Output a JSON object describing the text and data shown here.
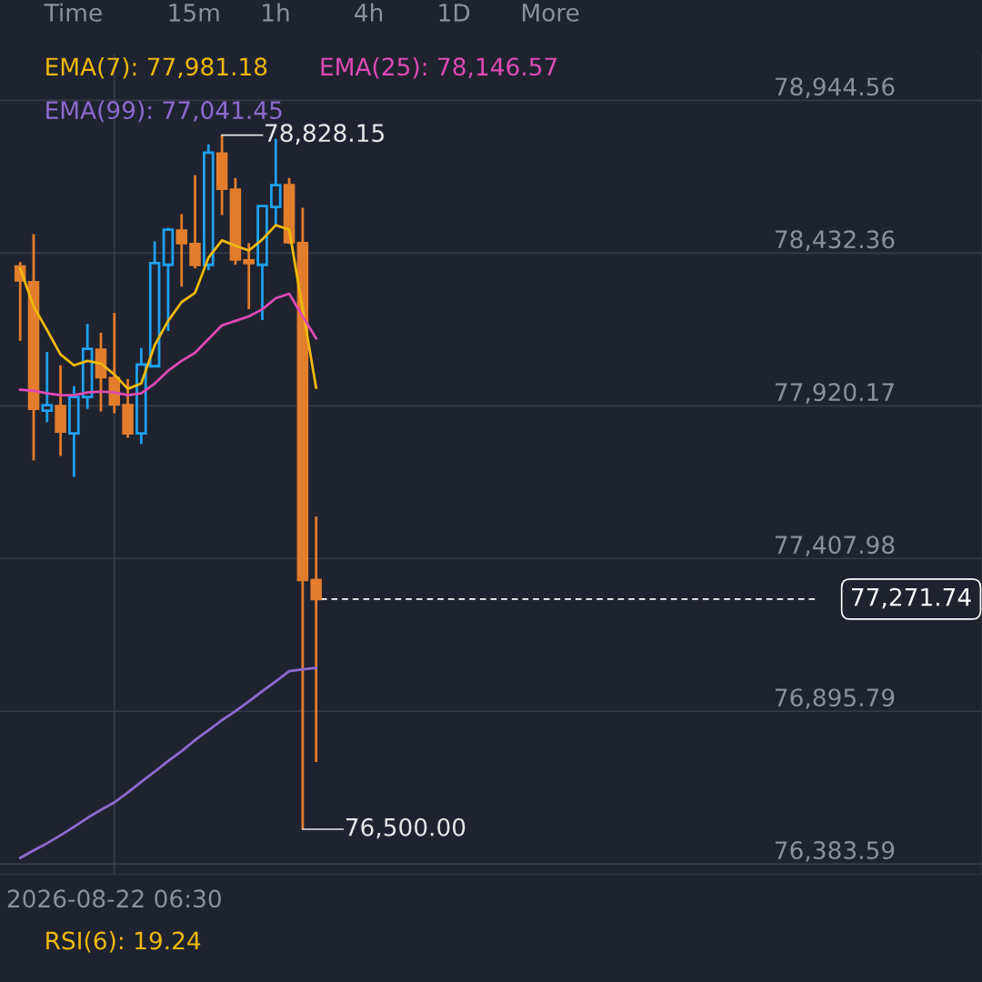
{
  "chart_data": {
    "type": "candlestick",
    "categories": [
      null,
      null,
      null,
      null,
      null,
      null,
      null,
      null,
      "2026-08-22 06:30",
      null,
      null,
      null,
      null,
      null,
      null,
      null,
      null,
      null,
      null,
      null,
      null,
      null,
      null,
      null,
      null,
      null,
      null,
      null,
      null,
      null,
      null,
      null,
      null,
      null,
      null,
      null,
      null,
      null,
      null,
      null,
      null,
      null,
      null,
      null,
      null,
      null,
      null,
      null,
      null,
      null,
      null,
      null,
      null,
      null,
      null,
      null,
      null,
      null,
      null,
      null,
      null,
      null,
      null,
      null,
      null,
      null,
      null,
      null,
      null,
      null,
      null,
      null,
      null
    ],
    "ohlc": [
      null,
      [
        78387,
        78402,
        78138,
        78341
      ],
      [
        78335,
        78496,
        77737,
        77910
      ],
      [
        77904,
        78101,
        77865,
        77922
      ],
      [
        77919,
        78056,
        77752,
        77834
      ],
      [
        77828,
        77986,
        77682,
        77950
      ],
      [
        77950,
        78195,
        77910,
        78111
      ],
      [
        78108,
        78165,
        77901,
        78016
      ],
      [
        78013,
        78232,
        77895,
        77925
      ],
      [
        77922,
        78010,
        77813,
        77828
      ],
      [
        77828,
        78114,
        77792,
        78059
      ],
      [
        78053,
        78472,
        78050,
        78399
      ],
      [
        78393,
        78517,
        78171,
        78511
      ],
      [
        78508,
        78563,
        78320,
        78466
      ],
      [
        78463,
        78693,
        78381,
        78393
      ],
      [
        78393,
        78797,
        78375,
        78769
      ],
      [
        78766,
        78828.15,
        78560,
        78648
      ],
      [
        78645,
        78684,
        78393,
        78411
      ],
      [
        78408,
        78466,
        78244,
        78399
      ],
      [
        78393,
        78590,
        78208,
        78590
      ],
      [
        78587,
        78815,
        78527,
        78660
      ],
      [
        78660,
        78684,
        78463,
        78469
      ],
      [
        78466,
        78584,
        76500,
        77336
      ],
      [
        77336,
        77549,
        76726,
        77271.74
      ],
      null,
      null,
      null,
      null,
      null,
      null,
      null,
      null,
      null,
      null,
      null,
      null,
      null,
      null,
      null,
      null,
      null,
      null,
      null,
      null,
      null,
      null,
      null,
      null,
      null,
      null,
      null,
      null,
      null,
      null,
      null,
      null,
      null,
      null,
      null,
      null,
      null,
      null,
      null,
      null,
      null,
      null,
      null,
      null,
      null,
      null,
      null,
      null,
      null
    ],
    "colors": [
      null,
      "#e27d2c",
      "#e27d2c",
      "#1ea1f0",
      "#e27d2c",
      "#1ea1f0",
      "#1ea1f0",
      "#e27d2c",
      "#e27d2c",
      "#e27d2c",
      "#1ea1f0",
      "#1ea1f0",
      "#1ea1f0",
      "#e27d2c",
      "#e27d2c",
      "#1ea1f0",
      "#e27d2c",
      "#e27d2c",
      "#e27d2c",
      "#1ea1f0",
      "#1ea1f0",
      "#e27d2c",
      "#e27d2c",
      "#e27d2c",
      null,
      null,
      null,
      null,
      null,
      null,
      null,
      null,
      null,
      null,
      null,
      null,
      null,
      null,
      null,
      null,
      null,
      null,
      null,
      null,
      null,
      null,
      null,
      null,
      null,
      null,
      null,
      null,
      null,
      null,
      null,
      null,
      null,
      null,
      null,
      null,
      null,
      null,
      null,
      null,
      null,
      null,
      null,
      null,
      null,
      null,
      null,
      null,
      null
    ],
    "series": [
      {
        "name": "EMA(7): 77,981.18",
        "type": "line",
        "color": "#f0b90b",
        "values": [
          null,
          78381,
          78253,
          78174,
          78092,
          78056,
          78071,
          78062,
          78025,
          77977,
          77995,
          78123,
          78205,
          78268,
          78299,
          78417,
          78475,
          78457,
          78441,
          78478,
          78526,
          78511,
          78244,
          77981.18,
          null,
          null,
          null,
          null,
          null,
          null,
          null,
          null,
          null,
          null,
          null,
          null,
          null,
          null,
          null,
          null,
          null,
          null,
          null,
          null,
          null,
          null,
          null,
          null,
          null,
          null,
          null,
          null,
          null,
          null,
          null,
          null,
          null,
          null,
          null,
          null,
          null,
          null,
          null,
          null,
          null,
          null,
          null,
          null,
          null,
          null,
          null,
          null,
          null
        ]
      },
      {
        "name": "EMA(25): 78,146.57",
        "type": "line",
        "color": "#e04bb4",
        "values": [
          null,
          77974,
          77971,
          77962,
          77956,
          77956,
          77965,
          77968,
          77965,
          77956,
          77962,
          77995,
          78038,
          78071,
          78098,
          78144,
          78190,
          78205,
          78220,
          78244,
          78281,
          78296,
          78220,
          78146.57,
          null,
          null,
          null,
          null,
          null,
          null,
          null,
          null,
          null,
          null,
          null,
          null,
          null,
          null,
          null,
          null,
          null,
          null,
          null,
          null,
          null,
          null,
          null,
          null,
          null,
          null,
          null,
          null,
          null,
          null,
          null,
          null,
          null,
          null,
          null,
          null,
          null,
          null,
          null,
          null,
          null,
          null,
          null,
          null,
          null,
          null,
          null,
          null,
          null
        ]
      },
      {
        "name": "EMA(99): 77,041.45",
        "type": "line",
        "color": "#8e6bd0",
        "values": [
          null,
          76404,
          76429,
          76453,
          76480,
          76508,
          76538,
          76565,
          76590,
          76623,
          76659,
          76693,
          76729,
          76762,
          76799,
          76832,
          76866,
          76896,
          76929,
          76963,
          76996,
          77030,
          77036,
          77041.45,
          null,
          null,
          null,
          null,
          null,
          null,
          null,
          null,
          null,
          null,
          null,
          null,
          null,
          null,
          null,
          null,
          null,
          null,
          null,
          null,
          null,
          null,
          null,
          null,
          null,
          null,
          null,
          null,
          null,
          null,
          null,
          null,
          null,
          null,
          null,
          null,
          null,
          null,
          null,
          null,
          null,
          null,
          null,
          null,
          null,
          null,
          null,
          null,
          null
        ]
      }
    ],
    "ylim": [
      76350,
      79100
    ],
    "yticks": [
      {
        "value": 76383.59,
        "label": "76,383.59"
      },
      {
        "value": 76895.79,
        "label": "76,895.79"
      },
      {
        "value": 77407.98,
        "label": "77,407.98"
      },
      {
        "value": 77920.17,
        "label": "77,920.17"
      },
      {
        "value": 78432.36,
        "label": "78,432.36"
      },
      {
        "value": 78944.56,
        "label": "78,944.56"
      }
    ],
    "grid": true,
    "ref_lines": [
      {
        "axis": "y",
        "value": 77271.74,
        "label": "77,271.74",
        "color": "#ffffff",
        "line_style": "dashed"
      }
    ],
    "annotations": [
      "Time",
      "15m",
      "1h",
      "4h",
      "1D",
      "More",
      "78,828.15",
      "76,500.00",
      "RSI(6): 19.24"
    ]
  }
}
